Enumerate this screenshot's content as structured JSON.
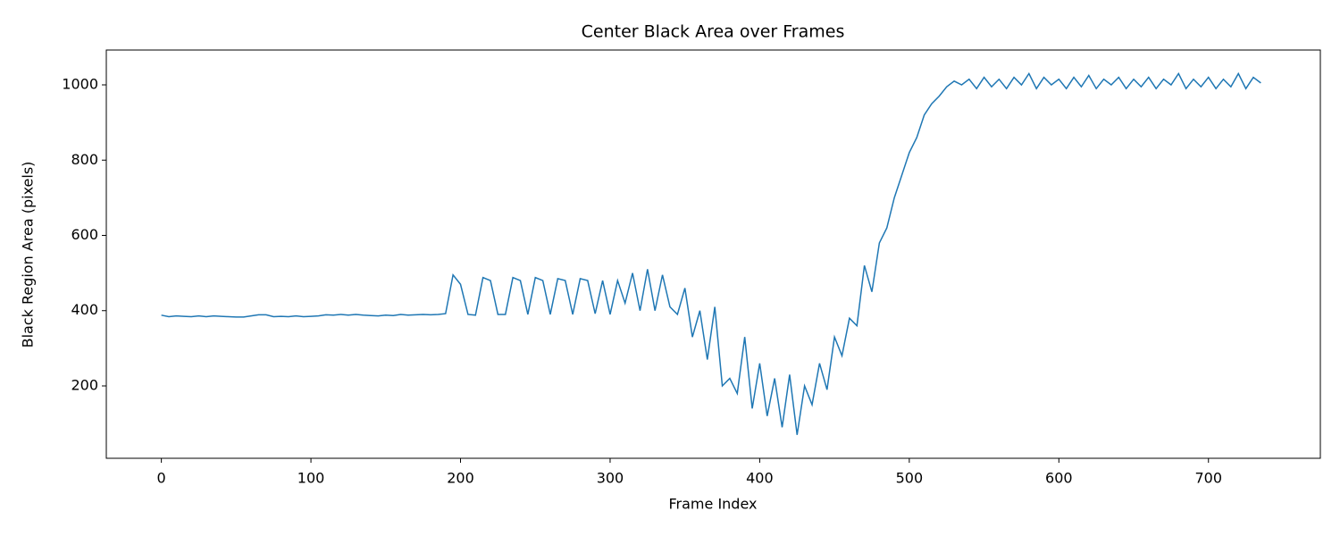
{
  "chart_data": {
    "type": "line",
    "title": "Center Black Area over Frames",
    "x_label": "Frame Index",
    "y_label": "Black Region Area (pixels)",
    "x": [
      0,
      5,
      10,
      15,
      20,
      25,
      30,
      35,
      40,
      45,
      50,
      55,
      60,
      65,
      70,
      75,
      80,
      85,
      90,
      95,
      100,
      105,
      110,
      115,
      120,
      125,
      130,
      135,
      140,
      145,
      150,
      155,
      160,
      165,
      170,
      175,
      180,
      185,
      190,
      195,
      200,
      205,
      210,
      215,
      220,
      225,
      230,
      235,
      240,
      245,
      250,
      255,
      260,
      265,
      270,
      275,
      280,
      285,
      290,
      295,
      300,
      305,
      310,
      315,
      320,
      325,
      330,
      335,
      340,
      345,
      350,
      355,
      360,
      365,
      370,
      375,
      380,
      385,
      390,
      395,
      400,
      405,
      410,
      415,
      420,
      425,
      430,
      435,
      440,
      445,
      450,
      455,
      460,
      465,
      470,
      475,
      480,
      485,
      490,
      495,
      500,
      505,
      510,
      515,
      520,
      525,
      530,
      535,
      540,
      545,
      550,
      555,
      560,
      565,
      570,
      575,
      580,
      585,
      590,
      595,
      600,
      605,
      610,
      615,
      620,
      625,
      630,
      635,
      640,
      645,
      650,
      655,
      660,
      665,
      670,
      675,
      680,
      685,
      690,
      695,
      700,
      705,
      710,
      715,
      720,
      725,
      730,
      735
    ],
    "series": [
      {
        "name": "Black Region Area",
        "color": "#1f77b4",
        "values": [
          388,
          384,
          386,
          385,
          384,
          386,
          384,
          386,
          385,
          384,
          383,
          383,
          386,
          389,
          389,
          384,
          385,
          384,
          386,
          384,
          385,
          386,
          389,
          388,
          390,
          388,
          390,
          388,
          387,
          386,
          388,
          387,
          390,
          388,
          389,
          390,
          389,
          390,
          392,
          495,
          470,
          390,
          388,
          488,
          480,
          390,
          390,
          488,
          480,
          390,
          488,
          480,
          390,
          485,
          480,
          390,
          485,
          480,
          392,
          480,
          390,
          480,
          420,
          500,
          400,
          510,
          400,
          495,
          410,
          390,
          460,
          330,
          400,
          270,
          410,
          200,
          220,
          180,
          330,
          140,
          260,
          120,
          220,
          90,
          230,
          70,
          200,
          150,
          260,
          190,
          330,
          280,
          380,
          360,
          520,
          450,
          580,
          620,
          700,
          760,
          820,
          860,
          920,
          950,
          970,
          995,
          1010,
          1000,
          1015,
          990,
          1020,
          995,
          1015,
          990,
          1020,
          1000,
          1030,
          990,
          1020,
          1000,
          1015,
          990,
          1020,
          995,
          1025,
          990,
          1015,
          1000,
          1020,
          990,
          1015,
          995,
          1020,
          990,
          1015,
          1000,
          1030,
          990,
          1015,
          995,
          1020,
          990,
          1015,
          995,
          1030,
          990,
          1020,
          1005
        ]
      }
    ],
    "xlim": [
      -36.8,
      774.8
    ],
    "ylim": [
      7.7,
      1092.6
    ],
    "xticks": [
      0,
      100,
      200,
      300,
      400,
      500,
      600,
      700
    ],
    "yticks": [
      200,
      400,
      600,
      800,
      1000
    ]
  }
}
